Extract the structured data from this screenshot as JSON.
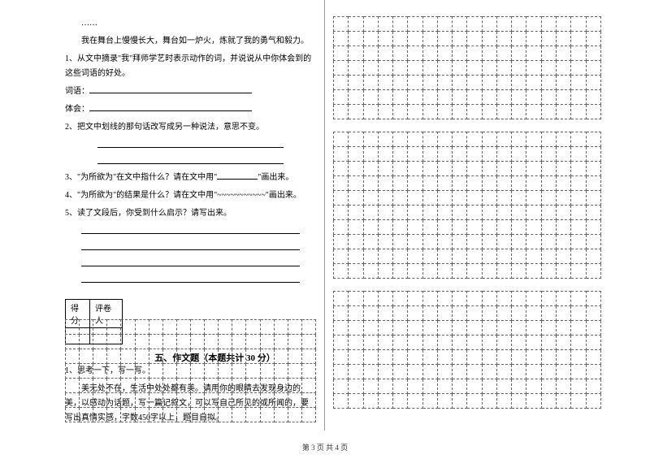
{
  "left": {
    "ellipsis": "……",
    "intro": "我在舞台上慢慢长大，舞台如一炉火，炼就了我的勇气和毅力。",
    "q1": "1、从文中摘录\"我\"拜师学艺时表示动作的词，并说说从中你体会到的这些词语的好处。",
    "q1_label1": "词语：",
    "q1_label2": "体会：",
    "q2": "2、把文中划线的那句话改写成另一种说法，意思不变。",
    "q3_pre": "3、\"为所欲为\"在文中指什么？请在文中用\"",
    "q3_post": "\"画出来。",
    "q4": "4、\"为所欲为\"的结果是什么？请在文中用\"~~~~~~~~~~~\"画出来。",
    "q5": "5、读了文段后，你受到什么启示？请写出来。",
    "score_label1": "得分",
    "score_label2": "评卷人",
    "section_title": "五、作文题（本题共计 30 分）",
    "essay_q": "1、思考一下，写一写。",
    "essay_body": "美无处不在，生活中处处都有美。请用你的眼睛去发现身边的美，以感动为话题，写一篇记叙文，可以写自己所见的或所闻的，要写出真情实感，字数450字以上，题目自拟。"
  },
  "footer": "第 3 页 共 4 页",
  "grid": {
    "left_cols": 18,
    "left_rows": 7,
    "right_cols": 18,
    "right_rows_block1": 7,
    "right_rows_block2": 10,
    "right_rows_block3": 8
  }
}
